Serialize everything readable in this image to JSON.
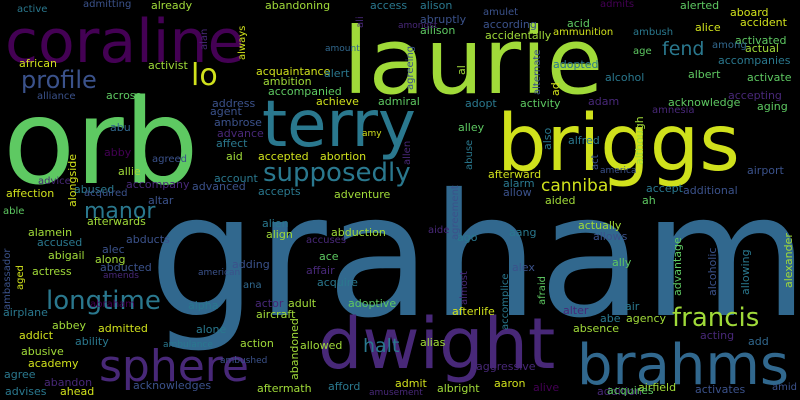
{
  "words": [
    {
      "text": "graham",
      "color": "#31688e"
    },
    {
      "text": "orb",
      "color": "#5ec962"
    },
    {
      "text": "laurie",
      "color": "#a0da39"
    },
    {
      "text": "briggs",
      "color": "#d0e11c"
    },
    {
      "text": "coraline",
      "color": "#440154"
    },
    {
      "text": "terry",
      "color": "#2a788e"
    },
    {
      "text": "dwight",
      "color": "#482878"
    },
    {
      "text": "brahms",
      "color": "#31688e"
    },
    {
      "text": "sphere",
      "color": "#482878"
    },
    {
      "text": "supposedly",
      "color": "#2a788e"
    },
    {
      "text": "longtime",
      "color": "#2a788e"
    },
    {
      "text": "francis",
      "color": "#a0da39"
    },
    {
      "text": "profile",
      "color": "#3b528b"
    },
    {
      "text": "lo",
      "color": "#d0e11c"
    },
    {
      "text": "manor",
      "color": "#2a788e"
    },
    {
      "text": "cannibal",
      "color": "#d0e11c"
    },
    {
      "text": "fend",
      "color": "#2a788e"
    },
    {
      "text": "halt",
      "color": "#2a788e"
    },
    {
      "text": "active",
      "color": "#2a788e"
    },
    {
      "text": "admitting",
      "color": "#3b528b"
    },
    {
      "text": "already",
      "color": "#a0da39"
    },
    {
      "text": "abandoning",
      "color": "#a0da39"
    },
    {
      "text": "access",
      "color": "#2a788e"
    },
    {
      "text": "alison",
      "color": "#2a788e"
    },
    {
      "text": "amulet",
      "color": "#3b528b"
    },
    {
      "text": "admits",
      "color": "#440154"
    },
    {
      "text": "alerted",
      "color": "#5ec962"
    },
    {
      "text": "aboard",
      "color": "#d0e11c"
    },
    {
      "text": "abruptly",
      "color": "#3b528b"
    },
    {
      "text": "acid",
      "color": "#5ec962"
    },
    {
      "text": "alice",
      "color": "#d0e11c"
    },
    {
      "text": "accident",
      "color": "#d0e11c"
    },
    {
      "text": "allison",
      "color": "#5ec962"
    },
    {
      "text": "according",
      "color": "#3b528b"
    },
    {
      "text": "accidentally",
      "color": "#a0da39"
    },
    {
      "text": "activated",
      "color": "#5ec962"
    },
    {
      "text": "ambush",
      "color": "#2a788e"
    },
    {
      "text": "ammunition",
      "color": "#d0e11c"
    },
    {
      "text": "amongst",
      "color": "#482878"
    },
    {
      "text": "amount",
      "color": "#31688e"
    },
    {
      "text": "age",
      "color": "#5ec962"
    },
    {
      "text": "among",
      "color": "#31688e"
    },
    {
      "text": "actual",
      "color": "#a0da39"
    },
    {
      "text": "african",
      "color": "#d0e11c"
    },
    {
      "text": "activist",
      "color": "#a0da39"
    },
    {
      "text": "accompanies",
      "color": "#2a788e"
    },
    {
      "text": "adopted",
      "color": "#2a788e"
    },
    {
      "text": "albert",
      "color": "#5ec962"
    },
    {
      "text": "acquaintance",
      "color": "#d0e11c"
    },
    {
      "text": "alert",
      "color": "#2a788e"
    },
    {
      "text": "alcohol",
      "color": "#2a788e"
    },
    {
      "text": "activate",
      "color": "#5ec962"
    },
    {
      "text": "accompanied",
      "color": "#5ec962"
    },
    {
      "text": "ambition",
      "color": "#a0da39"
    },
    {
      "text": "accepting",
      "color": "#482878"
    },
    {
      "text": "alliance",
      "color": "#3b528b"
    },
    {
      "text": "across",
      "color": "#5ec962"
    },
    {
      "text": "address",
      "color": "#3b528b"
    },
    {
      "text": "achieve",
      "color": "#d0e11c"
    },
    {
      "text": "admiral",
      "color": "#5ec962"
    },
    {
      "text": "adopt",
      "color": "#2a788e"
    },
    {
      "text": "activity",
      "color": "#5ec962"
    },
    {
      "text": "adam",
      "color": "#482878"
    },
    {
      "text": "acknowledge",
      "color": "#5ec962"
    },
    {
      "text": "aging",
      "color": "#5ec962"
    },
    {
      "text": "agent",
      "color": "#3b528b"
    },
    {
      "text": "ambrose",
      "color": "#3b528b"
    },
    {
      "text": "abu",
      "color": "#31688e"
    },
    {
      "text": "advance",
      "color": "#482878"
    },
    {
      "text": "affect",
      "color": "#2a788e"
    },
    {
      "text": "amy",
      "color": "#d0e11c"
    },
    {
      "text": "alley",
      "color": "#5ec962"
    },
    {
      "text": "alfred",
      "color": "#2a788e"
    },
    {
      "text": "amnesia",
      "color": "#482878"
    },
    {
      "text": "abby",
      "color": "#440154"
    },
    {
      "text": "agreed",
      "color": "#3b528b"
    },
    {
      "text": "aid",
      "color": "#a0da39"
    },
    {
      "text": "accepted",
      "color": "#d0e11c"
    },
    {
      "text": "abortion",
      "color": "#d0e11c"
    },
    {
      "text": "america",
      "color": "#3b528b"
    },
    {
      "text": "airport",
      "color": "#3b528b"
    },
    {
      "text": "allie",
      "color": "#a0da39"
    },
    {
      "text": "advice",
      "color": "#482878"
    },
    {
      "text": "account",
      "color": "#2a788e"
    },
    {
      "text": "advanced",
      "color": "#3b528b"
    },
    {
      "text": "accompany",
      "color": "#482878"
    },
    {
      "text": "affection",
      "color": "#d0e11c"
    },
    {
      "text": "abused",
      "color": "#2a788e"
    },
    {
      "text": "acquired",
      "color": "#3b528b"
    },
    {
      "text": "accepts",
      "color": "#2a788e"
    },
    {
      "text": "adventure",
      "color": "#a0da39"
    },
    {
      "text": "afterward",
      "color": "#d0e11c"
    },
    {
      "text": "alarm",
      "color": "#2a788e"
    },
    {
      "text": "allow",
      "color": "#3b528b"
    },
    {
      "text": "accept",
      "color": "#2a788e"
    },
    {
      "text": "additional",
      "color": "#3b528b"
    },
    {
      "text": "able",
      "color": "#5ec962"
    },
    {
      "text": "afterwards",
      "color": "#a0da39"
    },
    {
      "text": "altar",
      "color": "#3b528b"
    },
    {
      "text": "aided",
      "color": "#a0da39"
    },
    {
      "text": "ah",
      "color": "#5ec962"
    },
    {
      "text": "alamein",
      "color": "#a0da39"
    },
    {
      "text": "abducts",
      "color": "#3b528b"
    },
    {
      "text": "accused",
      "color": "#2a788e"
    },
    {
      "text": "alec",
      "color": "#3b528b"
    },
    {
      "text": "abigail",
      "color": "#a0da39"
    },
    {
      "text": "along",
      "color": "#a0da39"
    },
    {
      "text": "abducted",
      "color": "#3b528b"
    },
    {
      "text": "alien",
      "color": "#2a788e"
    },
    {
      "text": "align",
      "color": "#a0da39"
    },
    {
      "text": "abduction",
      "color": "#a0da39"
    },
    {
      "text": "accuses",
      "color": "#482878"
    },
    {
      "text": "aide",
      "color": "#482878"
    },
    {
      "text": "ago",
      "color": "#2a788e"
    },
    {
      "text": "aang",
      "color": "#2a788e"
    },
    {
      "text": "actually",
      "color": "#a0da39"
    },
    {
      "text": "allows",
      "color": "#3b528b"
    },
    {
      "text": "actress",
      "color": "#a0da39"
    },
    {
      "text": "amends",
      "color": "#482878"
    },
    {
      "text": "american",
      "color": "#3b528b"
    },
    {
      "text": "adding",
      "color": "#3b528b"
    },
    {
      "text": "ace",
      "color": "#5ec962"
    },
    {
      "text": "affair",
      "color": "#482878"
    },
    {
      "text": "acquire",
      "color": "#2a788e"
    },
    {
      "text": "alex",
      "color": "#3b528b"
    },
    {
      "text": "ally",
      "color": "#5ec962"
    },
    {
      "text": "ana",
      "color": "#31688e"
    },
    {
      "text": "actor",
      "color": "#482878"
    },
    {
      "text": "adult",
      "color": "#a0da39"
    },
    {
      "text": "adoptive",
      "color": "#5ec962"
    },
    {
      "text": "aircraft",
      "color": "#a0da39"
    },
    {
      "text": "alpha",
      "color": "#2a788e"
    },
    {
      "text": "afterlife",
      "color": "#d0e11c"
    },
    {
      "text": "airplane",
      "color": "#2a788e"
    },
    {
      "text": "abraham",
      "color": "#440154"
    },
    {
      "text": "addict",
      "color": "#d0e11c"
    },
    {
      "text": "abbey",
      "color": "#a0da39"
    },
    {
      "text": "admitted",
      "color": "#d0e11c"
    },
    {
      "text": "ability",
      "color": "#2a788e"
    },
    {
      "text": "alter",
      "color": "#482878"
    },
    {
      "text": "air",
      "color": "#2a788e"
    },
    {
      "text": "absence",
      "color": "#a0da39"
    },
    {
      "text": "abe",
      "color": "#2a788e"
    },
    {
      "text": "agency",
      "color": "#a0da39"
    },
    {
      "text": "acting",
      "color": "#482878"
    },
    {
      "text": "add",
      "color": "#31688e"
    },
    {
      "text": "academy",
      "color": "#d0e11c"
    },
    {
      "text": "alone",
      "color": "#2a788e"
    },
    {
      "text": "action",
      "color": "#a0da39"
    },
    {
      "text": "abusive",
      "color": "#a0da39"
    },
    {
      "text": "ambulance",
      "color": "#2a788e"
    },
    {
      "text": "allowed",
      "color": "#a0da39"
    },
    {
      "text": "alias",
      "color": "#a0da39"
    },
    {
      "text": "aggressive",
      "color": "#482878"
    },
    {
      "text": "agree",
      "color": "#2a788e"
    },
    {
      "text": "ambushed",
      "color": "#3b528b"
    },
    {
      "text": "abandon",
      "color": "#482878"
    },
    {
      "text": "acknowledges",
      "color": "#3b528b"
    },
    {
      "text": "aftermath",
      "color": "#a0da39"
    },
    {
      "text": "afford",
      "color": "#2a788e"
    },
    {
      "text": "admit",
      "color": "#d0e11c"
    },
    {
      "text": "albright",
      "color": "#a0da39"
    },
    {
      "text": "aaron",
      "color": "#d0e11c"
    },
    {
      "text": "advises",
      "color": "#2a788e"
    },
    {
      "text": "ahead",
      "color": "#d0e11c"
    },
    {
      "text": "amusement",
      "color": "#482878"
    },
    {
      "text": "alive",
      "color": "#440154"
    },
    {
      "text": "addition",
      "color": "#482878"
    },
    {
      "text": "airfield",
      "color": "#a0da39"
    },
    {
      "text": "activates",
      "color": "#3b528b"
    },
    {
      "text": "amid",
      "color": "#3b528b"
    },
    {
      "text": "acquires",
      "color": "#5ec962"
    },
    {
      "text": "ali",
      "color": "#482878"
    },
    {
      "text": "alan",
      "color": "#482878"
    },
    {
      "text": "always",
      "color": "#d0e11c"
    },
    {
      "text": "al",
      "color": "#a0da39"
    },
    {
      "text": "agreeing",
      "color": "#3b528b"
    },
    {
      "text": "alternate",
      "color": "#3b528b"
    },
    {
      "text": "ad",
      "color": "#d0e11c"
    },
    {
      "text": "alongside",
      "color": "#d0e11c"
    },
    {
      "text": "allen",
      "color": "#482878"
    },
    {
      "text": "abuse",
      "color": "#2a788e"
    },
    {
      "text": "also",
      "color": "#2a788e"
    },
    {
      "text": "act",
      "color": "#3b528b"
    },
    {
      "text": "although",
      "color": "#a0da39"
    },
    {
      "text": "agreement",
      "color": "#3b528b"
    },
    {
      "text": "alcoholic",
      "color": "#3b528b"
    },
    {
      "text": "advantage",
      "color": "#5ec962"
    },
    {
      "text": "allowing",
      "color": "#2a788e"
    },
    {
      "text": "alexander",
      "color": "#a0da39"
    },
    {
      "text": "ambassador",
      "color": "#3b528b"
    },
    {
      "text": "aged",
      "color": "#d0e11c"
    },
    {
      "text": "almost",
      "color": "#482878"
    },
    {
      "text": "accomplice",
      "color": "#2a788e"
    },
    {
      "text": "afraid",
      "color": "#5ec962"
    },
    {
      "text": "abandoned",
      "color": "#a0da39"
    }
  ]
}
